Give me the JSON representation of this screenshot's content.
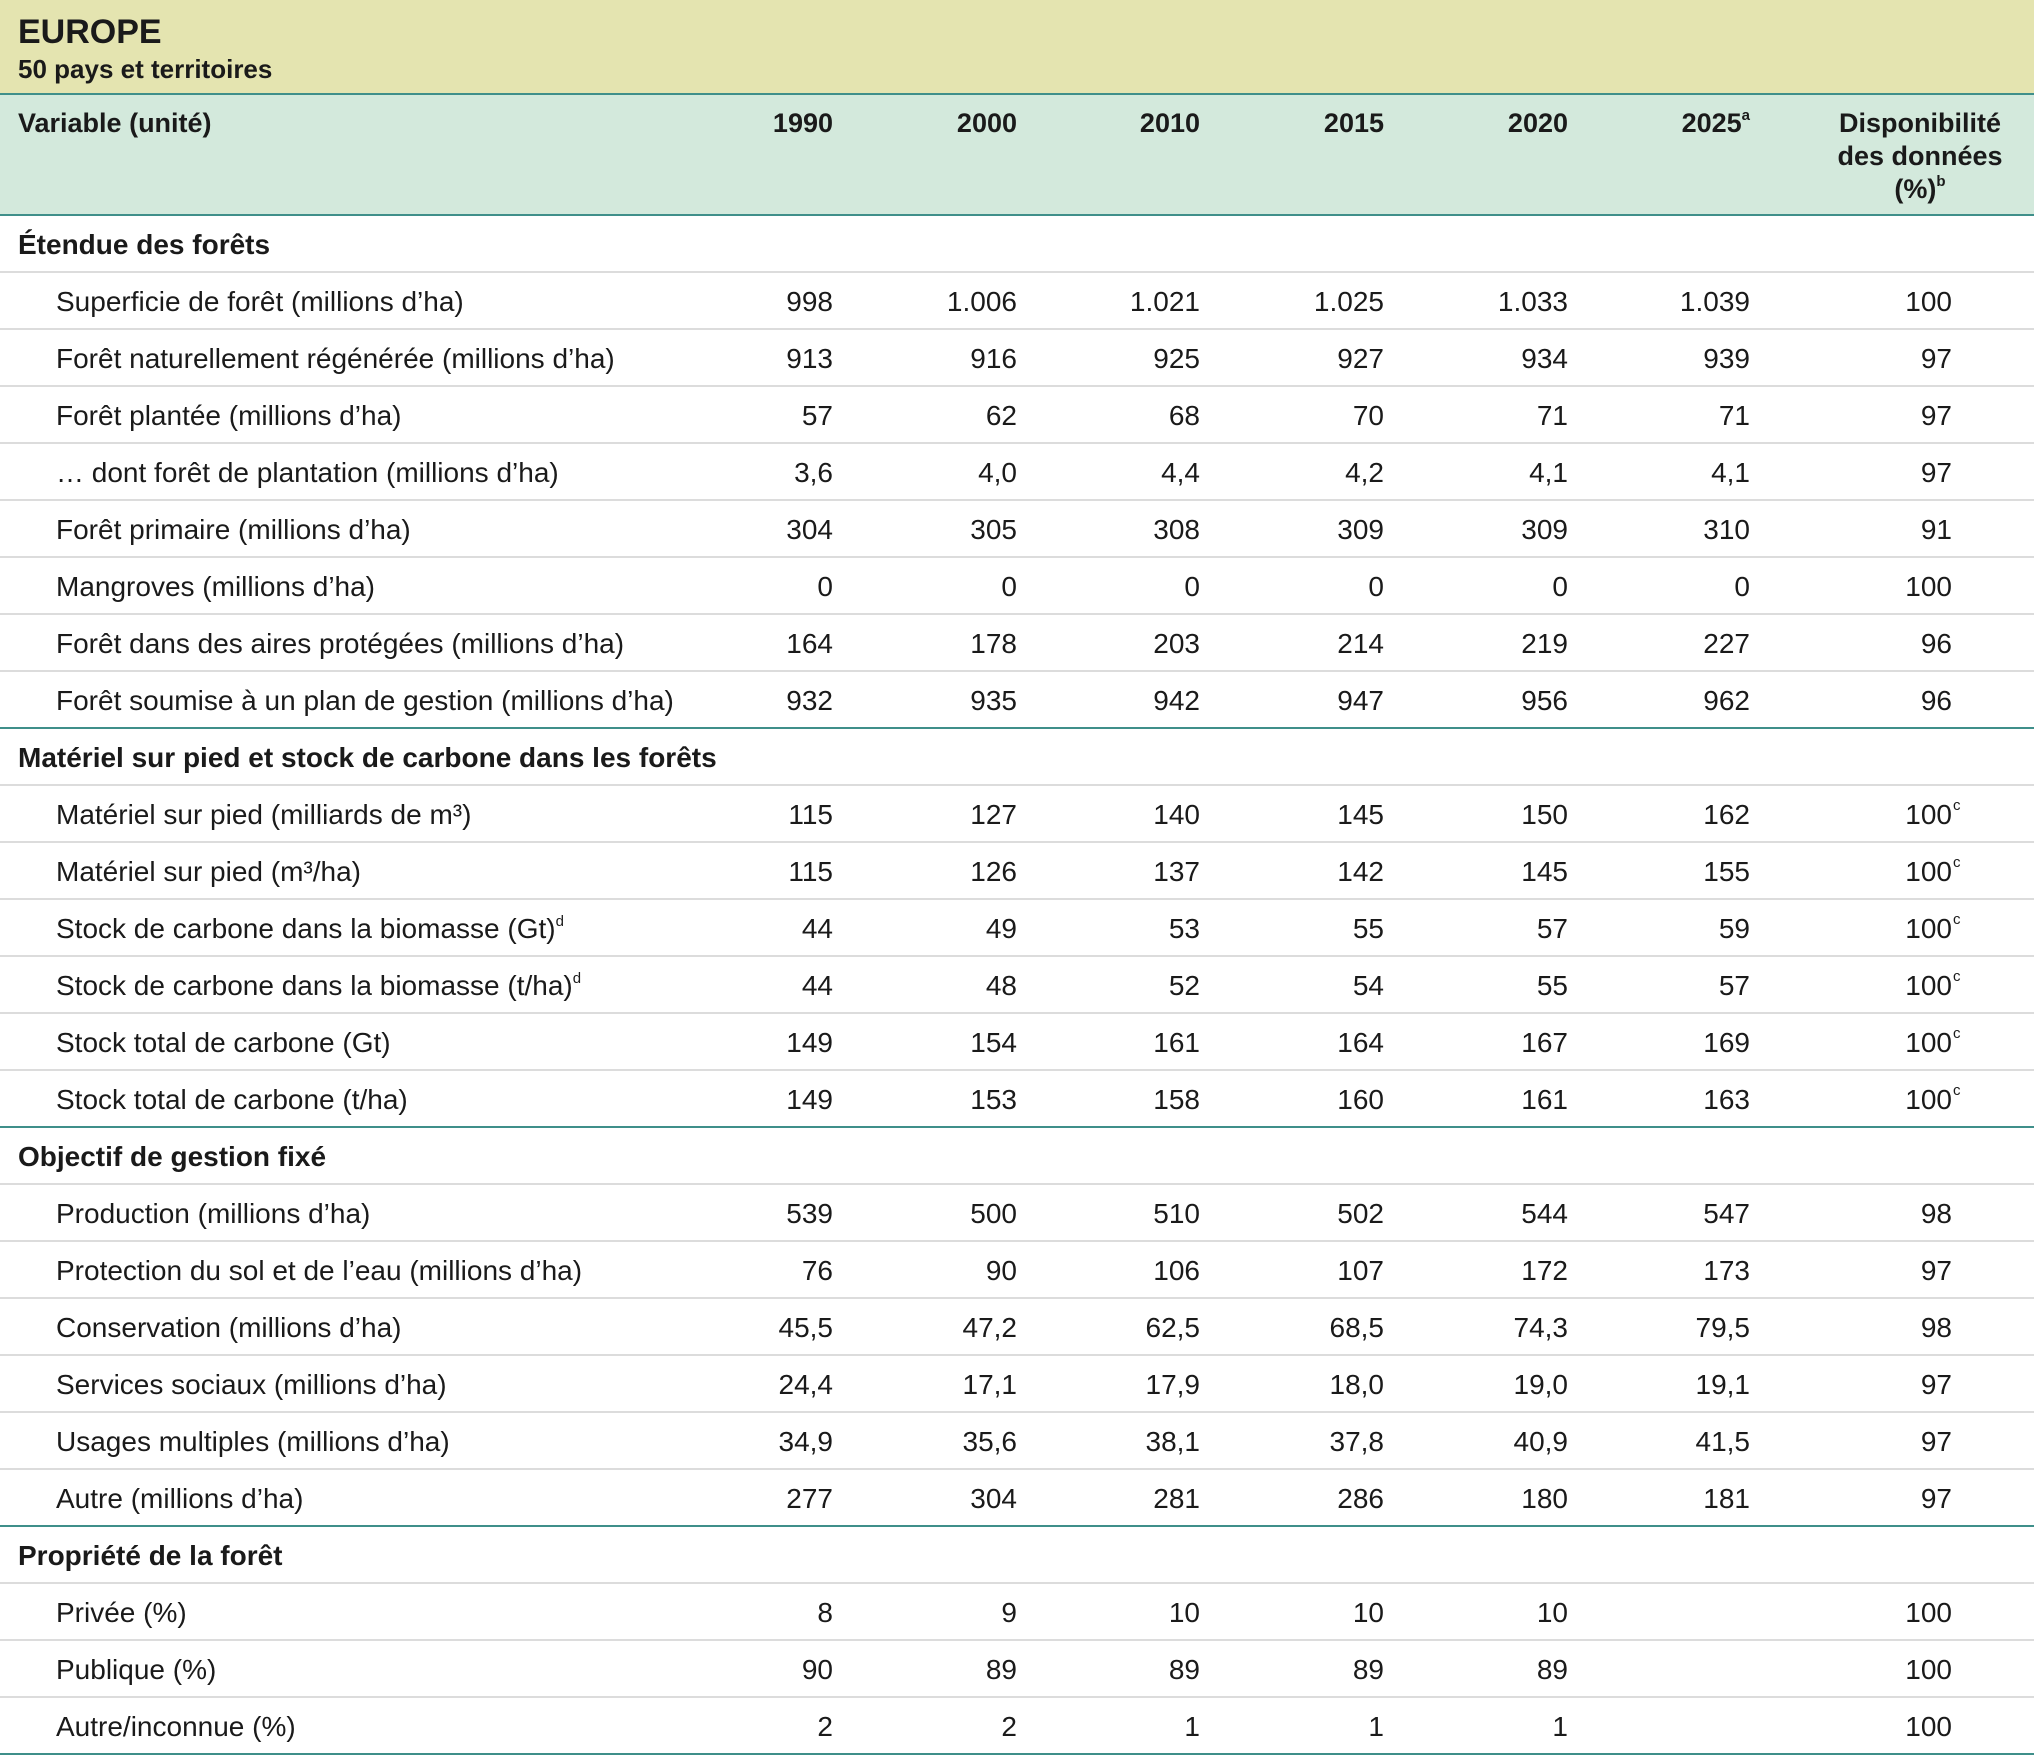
{
  "header": {
    "title": "EUROPE",
    "subtitle": "50 pays et territoires"
  },
  "table": {
    "columns": [
      {
        "label": "Variable (unité)"
      },
      {
        "label": "1990"
      },
      {
        "label": "2000"
      },
      {
        "label": "2010"
      },
      {
        "label": "2015"
      },
      {
        "label": "2020"
      },
      {
        "label": "2025",
        "note": "a"
      },
      {
        "label": "Disponibilité des données (%)",
        "note": "b"
      }
    ],
    "sections": [
      {
        "title": "Étendue des forêts",
        "rows": [
          {
            "label": "Superficie de forêt (millions d’ha)",
            "values": [
              "998",
              "1.006",
              "1.021",
              "1.025",
              "1.033",
              "1.039"
            ],
            "availability": "100"
          },
          {
            "label": "Forêt naturellement régénérée (millions d’ha)",
            "values": [
              "913",
              "916",
              "925",
              "927",
              "934",
              "939"
            ],
            "availability": "97"
          },
          {
            "label": "Forêt plantée (millions d’ha)",
            "values": [
              "57",
              "62",
              "68",
              "70",
              "71",
              "71"
            ],
            "availability": "97"
          },
          {
            "label": "… dont forêt de plantation (millions d’ha)",
            "values": [
              "3,6",
              "4,0",
              "4,4",
              "4,2",
              "4,1",
              "4,1"
            ],
            "availability": "97"
          },
          {
            "label": "Forêt primaire (millions d’ha)",
            "values": [
              "304",
              "305",
              "308",
              "309",
              "309",
              "310"
            ],
            "availability": "91"
          },
          {
            "label": "Mangroves (millions d’ha)",
            "values": [
              "0",
              "0",
              "0",
              "0",
              "0",
              "0"
            ],
            "availability": "100"
          },
          {
            "label": "Forêt dans des aires protégées (millions d’ha)",
            "values": [
              "164",
              "178",
              "203",
              "214",
              "219",
              "227"
            ],
            "availability": "96"
          },
          {
            "label": "Forêt soumise à un plan de gestion (millions d’ha)",
            "values": [
              "932",
              "935",
              "942",
              "947",
              "956",
              "962"
            ],
            "availability": "96"
          }
        ]
      },
      {
        "title": "Matériel sur pied et stock de carbone dans les forêts",
        "rows": [
          {
            "label": "Matériel sur pied (milliards de m³)",
            "values": [
              "115",
              "127",
              "140",
              "145",
              "150",
              "162"
            ],
            "availability": "100",
            "availability_note": "c"
          },
          {
            "label": "Matériel sur pied (m³/ha)",
            "values": [
              "115",
              "126",
              "137",
              "142",
              "145",
              "155"
            ],
            "availability": "100",
            "availability_note": "c"
          },
          {
            "label": "Stock de carbone dans la biomasse (Gt)",
            "label_note": "d",
            "values": [
              "44",
              "49",
              "53",
              "55",
              "57",
              "59"
            ],
            "availability": "100",
            "availability_note": "c"
          },
          {
            "label": "Stock de carbone dans la biomasse (t/ha)",
            "label_note": "d",
            "values": [
              "44",
              "48",
              "52",
              "54",
              "55",
              "57"
            ],
            "availability": "100",
            "availability_note": "c"
          },
          {
            "label": "Stock total de carbone (Gt)",
            "values": [
              "149",
              "154",
              "161",
              "164",
              "167",
              "169"
            ],
            "availability": "100",
            "availability_note": "c"
          },
          {
            "label": "Stock total de carbone (t/ha)",
            "values": [
              "149",
              "153",
              "158",
              "160",
              "161",
              "163"
            ],
            "availability": "100",
            "availability_note": "c"
          }
        ]
      },
      {
        "title": "Objectif de gestion fixé",
        "rows": [
          {
            "label": "Production (millions d’ha)",
            "values": [
              "539",
              "500",
              "510",
              "502",
              "544",
              "547"
            ],
            "availability": "98"
          },
          {
            "label": "Protection du sol et de l’eau (millions d’ha)",
            "values": [
              "76",
              "90",
              "106",
              "107",
              "172",
              "173"
            ],
            "availability": "97"
          },
          {
            "label": "Conservation (millions d’ha)",
            "values": [
              "45,5",
              "47,2",
              "62,5",
              "68,5",
              "74,3",
              "79,5"
            ],
            "availability": "98"
          },
          {
            "label": "Services sociaux (millions d’ha)",
            "values": [
              "24,4",
              "17,1",
              "17,9",
              "18,0",
              "19,0",
              "19,1"
            ],
            "availability": "97"
          },
          {
            "label": "Usages multiples (millions d’ha)",
            "values": [
              "34,9",
              "35,6",
              "38,1",
              "37,8",
              "40,9",
              "41,5"
            ],
            "availability": "97"
          },
          {
            "label": "Autre (millions d’ha)",
            "values": [
              "277",
              "304",
              "281",
              "286",
              "180",
              "181"
            ],
            "availability": "97"
          }
        ]
      },
      {
        "title": "Propriété de la forêt",
        "rows": [
          {
            "label": "Privée (%)",
            "values": [
              "8",
              "9",
              "10",
              "10",
              "10",
              null
            ],
            "availability": "100"
          },
          {
            "label": "Publique (%)",
            "values": [
              "90",
              "89",
              "89",
              "89",
              "89",
              null
            ],
            "availability": "100"
          },
          {
            "label": "Autre/inconnue (%)",
            "values": [
              "2",
              "2",
              "1",
              "1",
              "1",
              null
            ],
            "availability": "100"
          }
        ]
      }
    ]
  }
}
